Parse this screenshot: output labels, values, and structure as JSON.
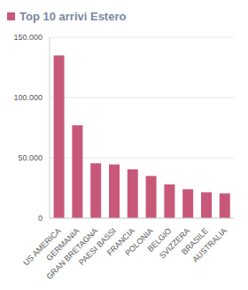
{
  "chart_data": {
    "type": "bar",
    "title": "Top 10 arrivi Estero",
    "categories": [
      "US AMERICA",
      "GERMANIA",
      "GRAN BRETAGNA",
      "PAESI BASSI",
      "FRANCIA",
      "POLONIA",
      "BELGIO",
      "SVIZZERA",
      "BRASILE",
      "AUSTRALIA"
    ],
    "values": [
      135000,
      77000,
      45500,
      44500,
      40500,
      35000,
      28000,
      24000,
      21500,
      20500
    ],
    "color": "#c8587a",
    "ylim": [
      0,
      150000
    ],
    "yticks": [
      0,
      {
        "value": 50000,
        "label": "50.000"
      },
      {
        "value": 100000,
        "label": "100.000"
      },
      {
        "value": 150000,
        "label": "150.000"
      }
    ],
    "grid": true
  }
}
